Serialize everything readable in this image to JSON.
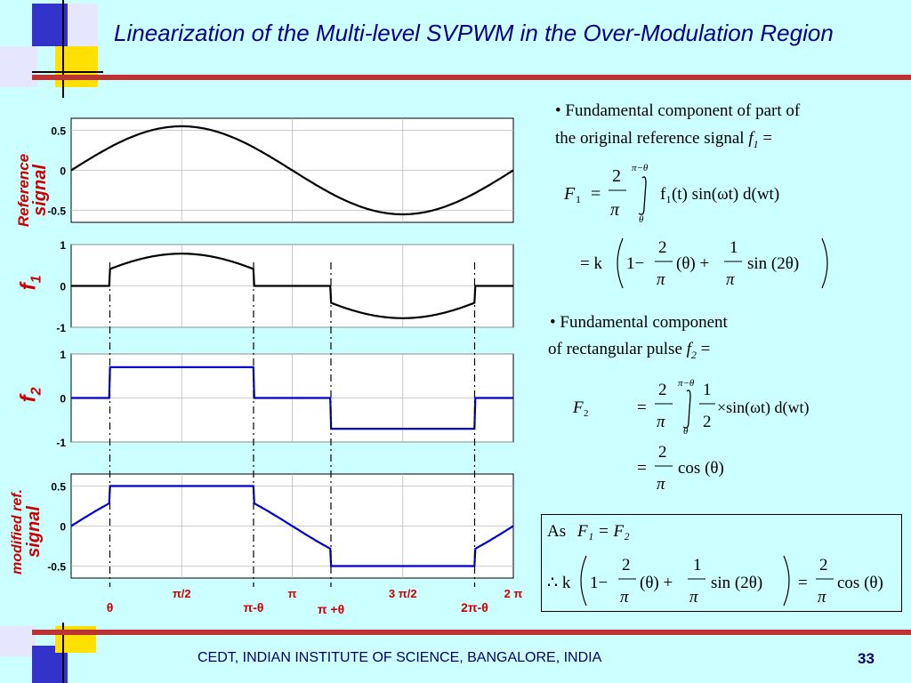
{
  "slide": {
    "title": "Linearization of the Multi-level SVPWM in the Over-Modulation Region",
    "footer": "CEDT, INDIAN INSTITUTE OF SCIENCE, BANGALORE, INDIA",
    "page_number": "33"
  },
  "plots": {
    "reference": {
      "label_line1": "Reference",
      "label_line2": "signal",
      "yticks": [
        "0.5",
        "0",
        "-0.5"
      ]
    },
    "f1": {
      "label": "f",
      "subscript": "1",
      "yticks": [
        "1",
        "0",
        "-1"
      ]
    },
    "f2": {
      "label": "f",
      "subscript": "2",
      "yticks": [
        "1",
        "0",
        "-1"
      ]
    },
    "modified": {
      "label_line1": "modified ref.",
      "label_line2": "signal",
      "yticks": [
        "0.5",
        "0",
        "-0.5"
      ]
    },
    "x_ticks": [
      "π/2",
      "π",
      "3 π/2",
      "2 π"
    ],
    "x_markers": [
      "θ",
      "π-θ",
      "π +θ",
      "2π-θ"
    ]
  },
  "text": {
    "bullet1_line1": "• Fundamental component of part of",
    "bullet1_line2": "the original reference signal",
    "bullet1_sym": "f",
    "bullet1_sub": "1",
    "bullet2_line1": "• Fundamental component",
    "bullet2_line2": "of rectangular pulse",
    "bullet2_sym": "f",
    "bullet2_sub": "2",
    "equals": "="
  },
  "equations": {
    "F1": "F",
    "F1_sub": "1",
    "eq_sign": "=",
    "two": "2",
    "pi": "π",
    "upper_limit": "π−θ",
    "lower_limit": "θ",
    "integrand1": "f₁(t) sin(ωt) d(wt)",
    "k": "= k",
    "one_minus": "1−",
    "theta_paren": "(θ) +",
    "one": "1",
    "sin2theta": "sin (2θ)",
    "F2": "F",
    "F2_sub": "2",
    "half_num": "1",
    "half_den": "2",
    "integrand2": "×sin(ωt) d(wt)",
    "cos_theta": "cos (θ)",
    "as": "As",
    "therefore": "∴ k",
    "eq_F1F2": "F₁ = F₂"
  },
  "colors": {
    "background": "#ccffff",
    "curve_black": "#000000",
    "curve_blue": "#0000cc",
    "title": "#000080"
  }
}
